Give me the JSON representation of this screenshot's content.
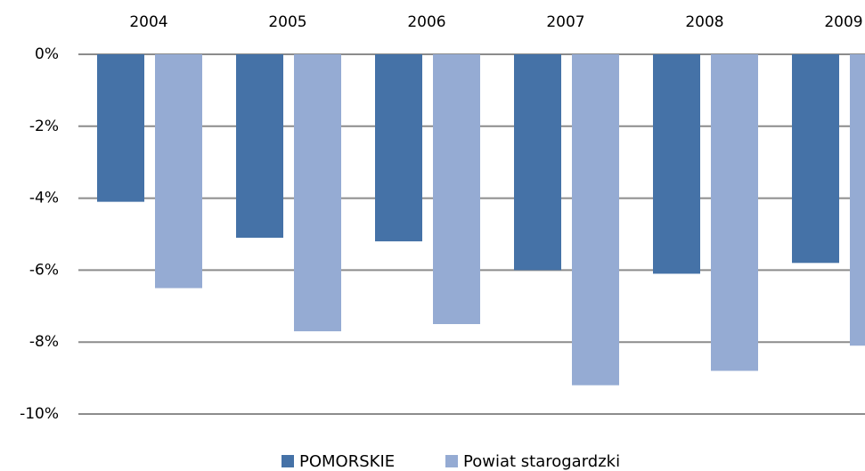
{
  "chart_data": {
    "type": "bar",
    "categories": [
      "2004",
      "2005",
      "2006",
      "2007",
      "2008",
      "2009"
    ],
    "series": [
      {
        "name": "POMORSKIE",
        "color": "#4572a7",
        "values": [
          -4.1,
          -5.1,
          -5.2,
          -6.0,
          -6.1,
          -5.8
        ]
      },
      {
        "name": "Powiat starogardzki",
        "color": "#95abd3",
        "values": [
          -6.5,
          -7.7,
          -7.5,
          -9.2,
          -8.8,
          -8.1
        ]
      }
    ],
    "ylim": [
      -10,
      0
    ],
    "yticks": [
      {
        "value": 0,
        "label": "0%"
      },
      {
        "value": -2,
        "label": "-2%"
      },
      {
        "value": -4,
        "label": "-4%"
      },
      {
        "value": -6,
        "label": "-6%"
      },
      {
        "value": -8,
        "label": "-8%"
      },
      {
        "value": -10,
        "label": "-10%"
      }
    ],
    "grid": true,
    "legend": "bottom"
  }
}
